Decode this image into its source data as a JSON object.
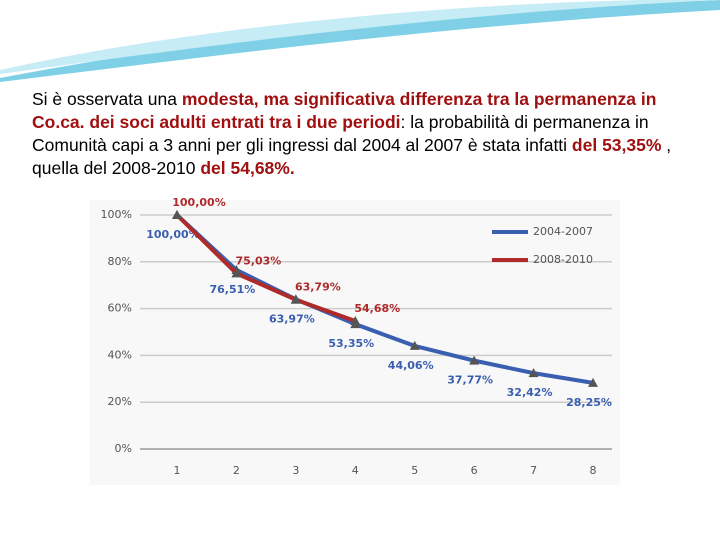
{
  "text": {
    "segments": [
      {
        "text": "Si è osservata una ",
        "emphasis": false
      },
      {
        "text": "modesta, ma significativa differenza tra la permanenza in Co.ca. dei soci adulti entrati tra i due periodi",
        "emphasis": true
      },
      {
        "text": ": la probabilità di permanenza in Comunità capi a 3 anni per gli ingressi dal 2004 al 2007 è stata infatti ",
        "emphasis": false
      },
      {
        "text": "del 53,35%",
        "emphasis": true
      },
      {
        "text": " , quella del 2008-2010 ",
        "emphasis": false
      },
      {
        "text": "del 54,68%.",
        "emphasis": true
      }
    ],
    "emphasis_color": "#a01010"
  },
  "chart_data": {
    "type": "line",
    "categories": [
      "1",
      "2",
      "3",
      "4",
      "5",
      "6",
      "7",
      "8"
    ],
    "series": [
      {
        "name": "2004-2007",
        "color": "#3a5fb0",
        "values": [
          100,
          76.51,
          63.97,
          53.35,
          44.06,
          37.77,
          32.42,
          28.25
        ],
        "value_labels": [
          "100,00%",
          "76,51%",
          "63,97%",
          "53,35%",
          "44,06%",
          "37,77%",
          "32,42%",
          "28,25%"
        ]
      },
      {
        "name": "2008-2010",
        "color": "#b02a2a",
        "values": [
          100,
          75.03,
          63.79,
          54.68,
          null,
          null,
          null,
          null
        ],
        "value_labels": [
          "100,00%",
          "75,03%",
          "63,79%",
          "54,68%",
          null,
          null,
          null,
          null
        ]
      }
    ],
    "ylim": [
      0,
      100
    ],
    "yticks": [
      {
        "value": 0,
        "label": "0%"
      },
      {
        "value": 20,
        "label": "20%"
      },
      {
        "value": 40,
        "label": "40%"
      },
      {
        "value": 60,
        "label": "60%"
      },
      {
        "value": 80,
        "label": "80%"
      },
      {
        "value": 100,
        "label": "100%"
      }
    ],
    "grid": true,
    "legend": "upper right"
  }
}
